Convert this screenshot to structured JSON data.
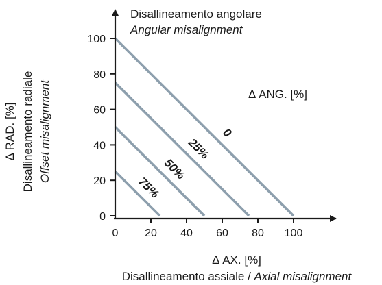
{
  "title": {
    "line1": "Disallineamento angolare",
    "line2": "Angular misalignment"
  },
  "y_axis": {
    "symbol_label": "Δ RAD. [%]",
    "label_it": "Disallineamento radiale",
    "label_en": "Offset misalignment"
  },
  "x_axis": {
    "symbol_label": "Δ AX. [%]",
    "label_it": "Disallineamento assiale / ",
    "label_en": "Axial misalignment"
  },
  "angular_label": "Δ ANG. [%]",
  "colors": {
    "line": "#8d9fad",
    "axis": "#1a1a1a",
    "text": "#1a1a1a"
  },
  "chart_data": {
    "type": "line",
    "title": "Disallineamento angolare / Angular misalignment",
    "xlabel": "Δ AX. [%]",
    "ylabel": "Δ RAD. [%]",
    "xlim": [
      0,
      100
    ],
    "ylim": [
      0,
      100
    ],
    "x_ticks": [
      0,
      20,
      40,
      60,
      80,
      100
    ],
    "y_ticks": [
      0,
      20,
      40,
      60,
      80,
      100
    ],
    "x_tick_labels": [
      "0",
      "20",
      "40",
      "60",
      "80",
      "100"
    ],
    "y_tick_labels": [
      "0",
      "20",
      "40",
      "60",
      "80",
      "100"
    ],
    "grid": false,
    "series": [
      {
        "name": "0",
        "x": [
          0,
          100
        ],
        "y": [
          100,
          0
        ]
      },
      {
        "name": "25%",
        "x": [
          0,
          75
        ],
        "y": [
          75,
          0
        ]
      },
      {
        "name": "50%",
        "x": [
          0,
          50
        ],
        "y": [
          50,
          0
        ]
      },
      {
        "name": "75%",
        "x": [
          0,
          25
        ],
        "y": [
          25,
          0
        ]
      }
    ]
  }
}
